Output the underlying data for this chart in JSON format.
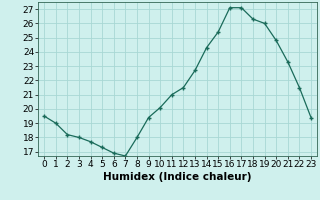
{
  "x": [
    0,
    1,
    2,
    3,
    4,
    5,
    6,
    7,
    8,
    9,
    10,
    11,
    12,
    13,
    14,
    15,
    16,
    17,
    18,
    19,
    20,
    21,
    22,
    23
  ],
  "y": [
    19.5,
    19.0,
    18.2,
    18.0,
    17.7,
    17.3,
    16.9,
    16.7,
    18.0,
    19.4,
    20.1,
    21.0,
    21.5,
    22.7,
    24.3,
    25.4,
    27.1,
    27.1,
    26.3,
    26.0,
    24.8,
    23.3,
    21.5,
    19.4
  ],
  "xlabel": "Humidex (Indice chaleur)",
  "ylim": [
    16.7,
    27.5
  ],
  "xlim": [
    -0.5,
    23.5
  ],
  "yticks": [
    17,
    18,
    19,
    20,
    21,
    22,
    23,
    24,
    25,
    26,
    27
  ],
  "xticks": [
    0,
    1,
    2,
    3,
    4,
    5,
    6,
    7,
    8,
    9,
    10,
    11,
    12,
    13,
    14,
    15,
    16,
    17,
    18,
    19,
    20,
    21,
    22,
    23
  ],
  "line_color": "#1a6b5a",
  "marker_color": "#1a6b5a",
  "bg_color": "#cff0ed",
  "grid_color": "#a8d8d4",
  "label_fontsize": 6.5,
  "xlabel_fontsize": 7.5
}
